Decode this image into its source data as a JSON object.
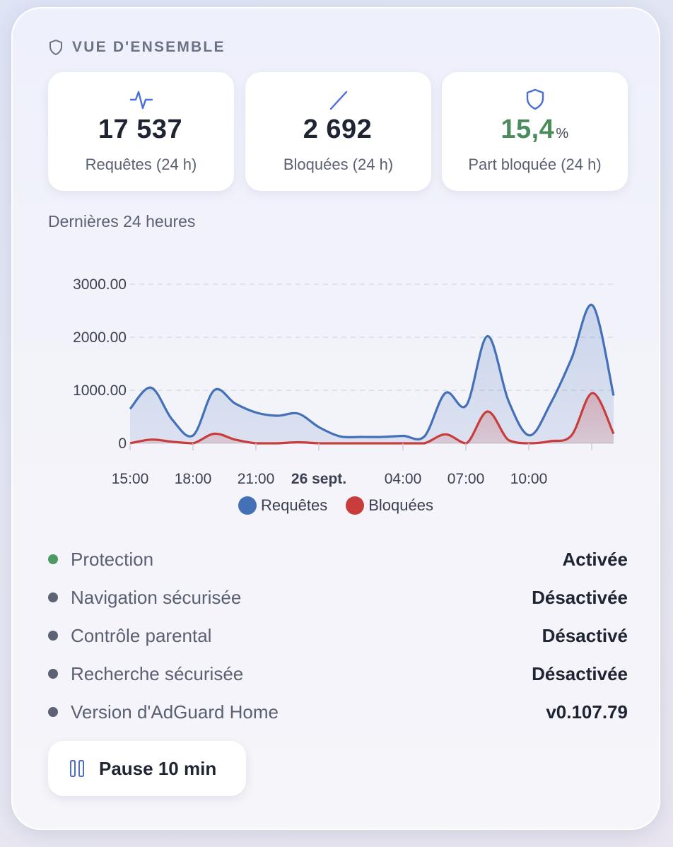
{
  "header": {
    "title": "VUE D'ENSEMBLE",
    "icon": "shield-icon"
  },
  "cards": [
    {
      "icon": "activity-icon",
      "value": "17 537",
      "unit": "",
      "label": "Requêtes (24 h)",
      "color": "#1f2433"
    },
    {
      "icon": "slash-icon",
      "value": "2 692",
      "unit": "",
      "label": "Bloquées (24 h)",
      "color": "#1f2433"
    },
    {
      "icon": "shield-icon",
      "value": "15,4",
      "unit": "%",
      "label": "Part bloquée (24 h)",
      "color": "#4c8c5c"
    }
  ],
  "chart_title": "Dernières 24 heures",
  "chart_data": {
    "type": "area",
    "x_labels": [
      "15:00",
      "18:00",
      "21:00",
      "26 sept.",
      "04:00",
      "07:00",
      "10:00"
    ],
    "y_ticks": [
      "0",
      "1000.00",
      "2000.00",
      "3000.00"
    ],
    "ylim": [
      0,
      3000
    ],
    "grid": true,
    "legend": "bottom",
    "series": [
      {
        "name": "Requêtes",
        "color": "#4470b8",
        "values": [
          650,
          1050,
          450,
          150,
          1000,
          750,
          580,
          520,
          560,
          300,
          130,
          120,
          120,
          140,
          130,
          950,
          720,
          2020,
          800,
          150,
          750,
          1600,
          2600,
          900
        ]
      },
      {
        "name": "Bloquées",
        "color": "#c83c3c",
        "values": [
          0,
          70,
          30,
          0,
          180,
          70,
          0,
          0,
          20,
          0,
          0,
          0,
          0,
          0,
          0,
          170,
          0,
          600,
          60,
          0,
          40,
          150,
          950,
          180
        ]
      }
    ]
  },
  "status": [
    {
      "label": "Protection",
      "value": "Activée",
      "dot_color": "#4c9a62"
    },
    {
      "label": "Navigation sécurisée",
      "value": "Désactivée",
      "dot_color": "#5d6374"
    },
    {
      "label": "Contrôle parental",
      "value": "Désactivé",
      "dot_color": "#5d6374"
    },
    {
      "label": "Recherche sécurisée",
      "value": "Désactivée",
      "dot_color": "#5d6374"
    },
    {
      "label": "Version d'AdGuard Home",
      "value": "v0.107.79",
      "dot_color": "#5d6374"
    }
  ],
  "pause_button": {
    "label": "Pause 10 min",
    "icon": "pause-icon"
  }
}
